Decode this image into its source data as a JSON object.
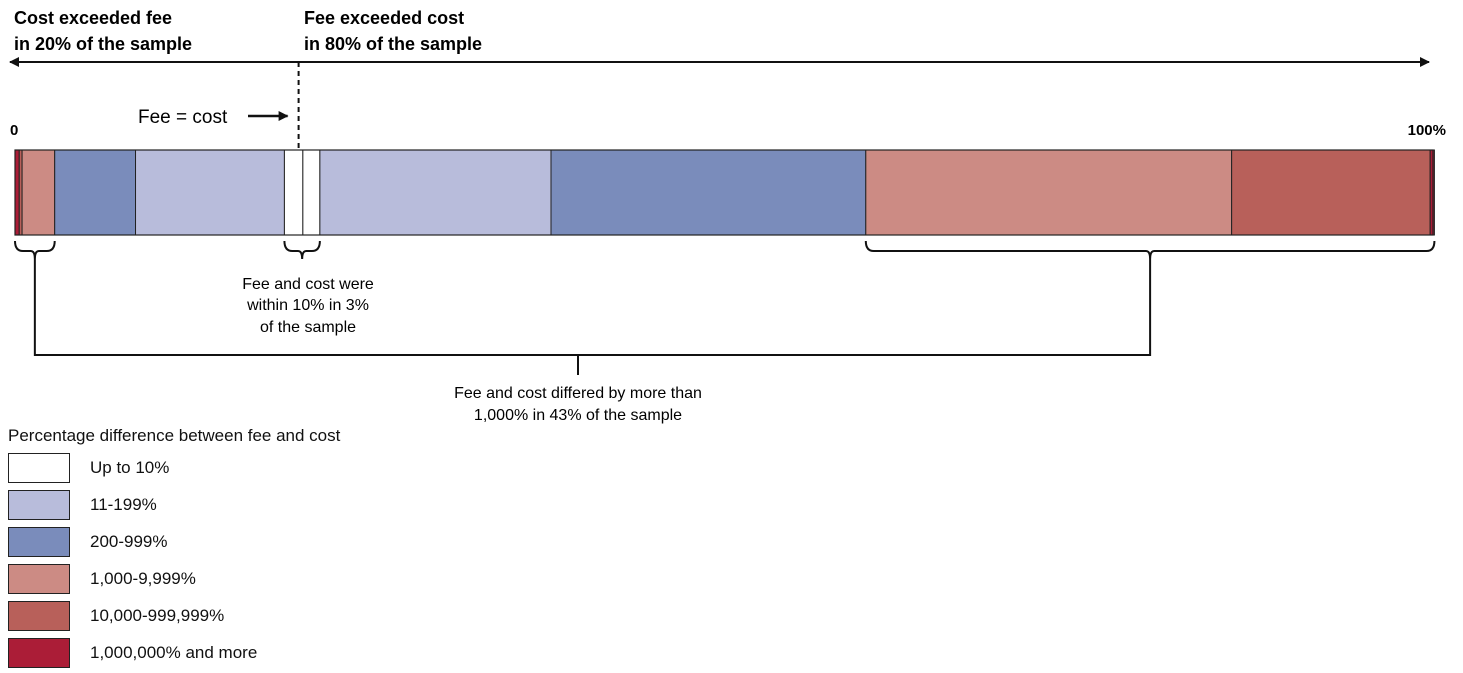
{
  "chart_data": {
    "type": "bar",
    "orientation": "horizontal-stacked",
    "title": "",
    "xlabel": "",
    "ylabel": "",
    "xlim": [
      0,
      100
    ],
    "axis_start_label": "0",
    "axis_end_label": "100%",
    "fee_equals_cost_position": 20,
    "segments": [
      {
        "category": "1,000,000% and more",
        "value": 0.3
      },
      {
        "category": "10,000-999,999%",
        "value": 0.2
      },
      {
        "category": "1,000-9,999%",
        "value": 2.3
      },
      {
        "category": "200-999%",
        "value": 5.7
      },
      {
        "category": "11-199%",
        "value": 10.5
      },
      {
        "category": "Up to 10%",
        "value": 1.3
      },
      {
        "category": "Up to 10%",
        "value": 1.2
      },
      {
        "category": "11-199%",
        "value": 16.3
      },
      {
        "category": "200-999%",
        "value": 22.2
      },
      {
        "category": "1,000-9,999%",
        "value": 25.8
      },
      {
        "category": "10,000-999,999%",
        "value": 14.0
      },
      {
        "category": "1,000,000% and more",
        "value": 0.3
      }
    ],
    "legend": {
      "title": "Percentage difference between fee and cost",
      "placement": "bottom-left",
      "entries": [
        {
          "label": "Up to 10%",
          "color": "#ffffff"
        },
        {
          "label": "11-199%",
          "color": "#b8bcdb"
        },
        {
          "label": "200-999%",
          "color": "#7a8cbb"
        },
        {
          "label": "1,000-9,999%",
          "color": "#cc8b84"
        },
        {
          "label": "10,000-999,999%",
          "color": "#b8605a"
        },
        {
          "label": "1,000,000% and more",
          "color": "#ab1d37"
        }
      ]
    },
    "annotations": {
      "left_header": [
        "Cost exceeded fee",
        "in 20% of the sample"
      ],
      "right_header": [
        "Fee exceeded cost",
        "in 80% of the sample"
      ],
      "fee_equals_cost": "Fee = cost",
      "within_10": [
        "Fee and cost were",
        "within 10% in 3%",
        "of the sample"
      ],
      "over_1000": [
        "Fee and cost differed by more than",
        "1,000% in 43% of the sample"
      ]
    }
  }
}
